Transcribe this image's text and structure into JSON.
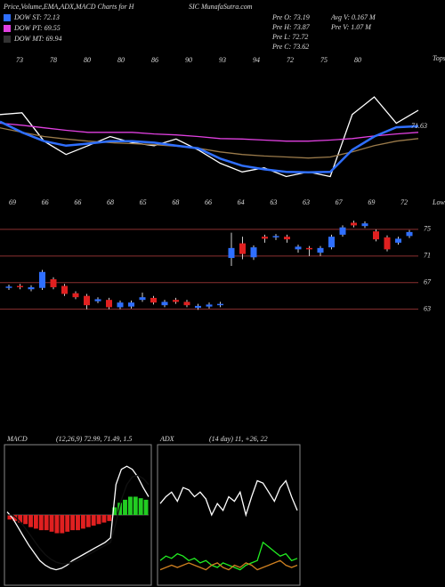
{
  "header": {
    "title_left": "Price,Volume,EMA,ADX,MACD Charts for H",
    "title_right": "SIC MunafaSutra.com"
  },
  "info": {
    "left": [
      "Pre O: 73.19",
      "Pre H: 73.87",
      "Pre L: 72.72",
      "Pre C: 73.62"
    ],
    "right": [
      "Avg V: 0.167 M",
      "Pre V: 1.07 M"
    ]
  },
  "chart_data": [
    {
      "type": "line",
      "ylim": [
        61,
        87
      ],
      "last_label": "71.63",
      "top_label": "Tops",
      "low_label": "Lows",
      "top_ticks": [
        "73",
        "78",
        "80",
        "80",
        "86",
        "90",
        "93",
        "94",
        "72",
        "75",
        "80"
      ],
      "low_ticks": [
        "69",
        "66",
        "66",
        "68",
        "65",
        "68",
        "66",
        "64",
        "63",
        "63",
        "67",
        "69",
        "72"
      ],
      "series": [
        {
          "color": "#ffffff",
          "values": [
            75.08,
            75.42,
            69.9,
            67.3,
            69.0,
            70.8,
            69.6,
            69.0,
            70.3,
            68.2,
            65.6,
            63.9,
            64.7,
            63.0,
            63.9,
            63.0,
            75.1,
            78.5,
            73.4,
            75.9
          ]
        },
        {
          "name": "DOW MT: 69.94",
          "color": "#9a7a4a",
          "legend_color": "#333333",
          "values": [
            72.5,
            71.6,
            70.8,
            70.3,
            69.9,
            69.6,
            69.4,
            69.2,
            68.9,
            68.5,
            67.8,
            67.3,
            67.0,
            66.8,
            66.6,
            66.8,
            67.8,
            69.0,
            69.9,
            70.4
          ]
        },
        {
          "name": "DOW PT: 69.55",
          "color": "#e040e0",
          "values": [
            73.4,
            73.0,
            72.5,
            72.0,
            71.6,
            71.6,
            71.6,
            71.3,
            71.1,
            70.8,
            70.4,
            70.3,
            70.1,
            69.9,
            69.9,
            70.1,
            70.4,
            70.9,
            71.3,
            71.6
          ]
        },
        {
          "name": "DOW ST: 72.13",
          "color": "#2f6fff",
          "values": [
            73.7,
            71.6,
            69.9,
            69.0,
            69.4,
            69.9,
            69.9,
            69.6,
            69.0,
            68.5,
            66.5,
            65.1,
            64.4,
            63.9,
            63.8,
            63.9,
            68.2,
            70.8,
            72.6,
            72.8
          ]
        }
      ]
    },
    {
      "type": "candlestick",
      "ylim": [
        56,
        79.4
      ],
      "yticks": [
        63,
        67,
        71,
        75
      ],
      "up_color": "#2f6fff",
      "down_color": "#e02020",
      "open": [
        66.2,
        66.5,
        66.0,
        66.2,
        67.5,
        66.5,
        65.4,
        65.0,
        64.2,
        64.4,
        63.3,
        63.4,
        64.4,
        64.7,
        63.6,
        64.4,
        64.1,
        63.2,
        63.4,
        63.6,
        70.7,
        72.9,
        70.8,
        73.9,
        73.8,
        73.9,
        72.0,
        72.2,
        71.5,
        72.3,
        74.2,
        76.0,
        75.5,
        74.7,
        73.8,
        73.0,
        74.0
      ],
      "high": [
        66.7,
        66.8,
        66.6,
        68.9,
        67.8,
        66.8,
        65.7,
        65.3,
        64.8,
        64.7,
        64.3,
        64.3,
        65.5,
        65.0,
        64.4,
        64.7,
        64.4,
        63.8,
        64.0,
        64.1,
        74.5,
        73.9,
        72.6,
        74.2,
        74.3,
        74.2,
        72.7,
        72.5,
        72.5,
        74.2,
        75.6,
        76.3,
        76.2,
        75.0,
        74.1,
        73.9,
        74.9
      ],
      "low": [
        65.9,
        66.0,
        65.7,
        65.9,
        66.0,
        65.0,
        64.5,
        63.0,
        63.9,
        63.0,
        63.0,
        63.1,
        64.1,
        63.7,
        63.3,
        63.8,
        63.3,
        62.9,
        63.1,
        63.3,
        69.5,
        70.5,
        70.4,
        73.0,
        73.4,
        73.0,
        71.5,
        71.0,
        71.0,
        72.0,
        73.9,
        75.3,
        75.2,
        73.2,
        71.7,
        72.7,
        73.7
      ],
      "close": [
        66.4,
        66.3,
        66.3,
        68.6,
        66.3,
        65.3,
        64.8,
        63.6,
        64.5,
        63.3,
        64.0,
        64.0,
        64.8,
        64.0,
        64.1,
        64.1,
        63.6,
        63.5,
        63.7,
        63.8,
        72.2,
        71.3,
        72.3,
        73.6,
        74.0,
        73.5,
        72.4,
        72.0,
        72.2,
        73.9,
        75.3,
        75.6,
        75.9,
        73.5,
        72.0,
        73.6,
        74.6
      ]
    },
    {
      "type": "bar",
      "title": "MACD",
      "subtitle": "(12,26,9) 72.99, 71.49, 1.5",
      "ylim": [
        -45,
        45
      ],
      "pos_color": "#22cc22",
      "neg_color": "#e02020",
      "values": [
        -3,
        -4,
        -5,
        -6,
        -8,
        -9,
        -10,
        -10,
        -11,
        -12,
        -12,
        -11,
        -10,
        -10,
        -9,
        -8,
        -7,
        -6,
        -5,
        -4,
        5,
        8,
        10,
        12,
        12,
        11,
        10
      ],
      "series": [
        {
          "color": "#ffffff",
          "values": [
            2,
            -2,
            -8,
            -14,
            -20,
            -25,
            -30,
            -33,
            -35,
            -36,
            -35,
            -33,
            -30,
            -28,
            -26,
            -24,
            -22,
            -20,
            -18,
            -15,
            20,
            30,
            32,
            30,
            25,
            18,
            12
          ]
        },
        {
          "color": "#111111",
          "values": [
            0,
            0,
            -3,
            -7,
            -12,
            -17,
            -22,
            -26,
            -29,
            -31,
            -32,
            -32,
            -31,
            -30,
            -28,
            -26,
            -24,
            -22,
            -20,
            -18,
            -5,
            10,
            20,
            25,
            26,
            24,
            20
          ]
        }
      ]
    },
    {
      "type": "line",
      "title": "ADX",
      "subtitle": "(14 day) 11, +26, 22",
      "ylim": [
        0,
        60
      ],
      "series": [
        {
          "color": "#ffffff",
          "values": [
            35,
            38,
            40,
            36,
            42,
            41,
            38,
            40,
            37,
            30,
            35,
            32,
            38,
            36,
            40,
            30,
            38,
            45,
            44,
            40,
            36,
            42,
            45,
            38,
            32
          ]
        },
        {
          "color": "#22ee22",
          "values": [
            10,
            12,
            11,
            13,
            12,
            10,
            11,
            9,
            10,
            8,
            7,
            9,
            8,
            7,
            6,
            8,
            9,
            10,
            18,
            16,
            14,
            12,
            13,
            10,
            11
          ]
        },
        {
          "color": "#d08020",
          "values": [
            6,
            7,
            8,
            7,
            8,
            9,
            8,
            7,
            6,
            8,
            9,
            7,
            6,
            8,
            7,
            9,
            8,
            6,
            7,
            8,
            9,
            10,
            8,
            7,
            8
          ]
        }
      ]
    }
  ]
}
